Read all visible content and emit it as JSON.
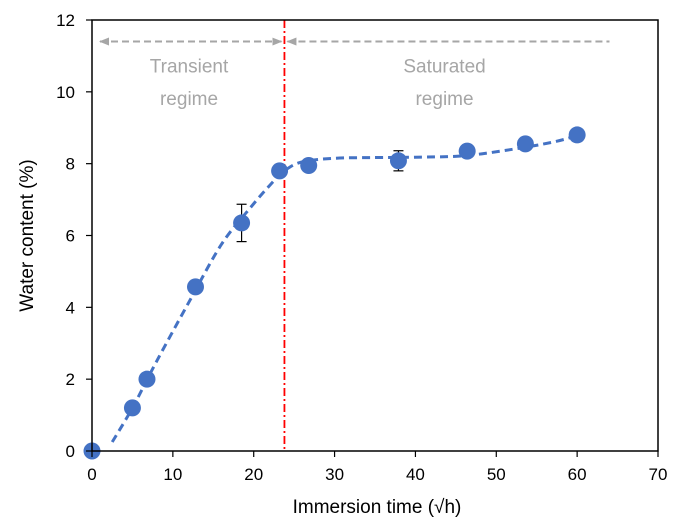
{
  "chart_data": {
    "type": "scatter",
    "xlabel": "Immersion time (√h)",
    "ylabel": "Water content (%)",
    "xlim": [
      0,
      70
    ],
    "ylim": [
      0,
      12
    ],
    "xticks": [
      0,
      10,
      20,
      30,
      40,
      50,
      60,
      70
    ],
    "yticks": [
      0,
      2,
      4,
      6,
      8,
      10,
      12
    ],
    "grid": false,
    "legend": "none",
    "series": [
      {
        "marker_color": "#4472c4",
        "points": [
          {
            "x": 0,
            "y": 0
          },
          {
            "x": 5,
            "y": 1.2
          },
          {
            "x": 6.8,
            "y": 2.0
          },
          {
            "x": 12.8,
            "y": 4.57
          },
          {
            "x": 18.5,
            "y": 6.35,
            "err": 0.52
          },
          {
            "x": 23.2,
            "y": 7.8
          },
          {
            "x": 26.8,
            "y": 7.95
          },
          {
            "x": 37.9,
            "y": 8.08,
            "err": 0.28
          },
          {
            "x": 46.4,
            "y": 8.35
          },
          {
            "x": 53.6,
            "y": 8.55
          },
          {
            "x": 60,
            "y": 8.8
          }
        ]
      }
    ],
    "trendline": {
      "style": "dashed",
      "color": "#4472c4",
      "x": [
        2.5,
        5,
        8,
        12,
        16,
        19.5,
        22,
        23.8,
        26,
        30,
        35,
        40,
        46,
        52,
        57,
        60
      ],
      "y": [
        0.25,
        1.2,
        2.5,
        4.15,
        5.75,
        6.75,
        7.4,
        7.8,
        8.05,
        8.15,
        8.17,
        8.18,
        8.22,
        8.4,
        8.6,
        8.78
      ]
    },
    "divider": {
      "x": 23.8,
      "color": "#ff0000",
      "style": "dash-dot"
    },
    "regime_arrows": {
      "transient": {
        "x": [
          0,
          23.8
        ],
        "y": 11.4
      },
      "saturated": {
        "x": [
          23.8,
          64
        ],
        "y": 11.4
      },
      "color": "#a6a6a6"
    },
    "annotations": [
      {
        "id": "transient-label",
        "lines": [
          "Transient",
          "regime"
        ],
        "x": 12,
        "y_lines": [
          10.7,
          9.8
        ]
      },
      {
        "id": "saturated-label",
        "lines": [
          "Saturated",
          "regime"
        ],
        "x": 43.6,
        "y_lines": [
          10.7,
          9.8
        ]
      }
    ]
  }
}
